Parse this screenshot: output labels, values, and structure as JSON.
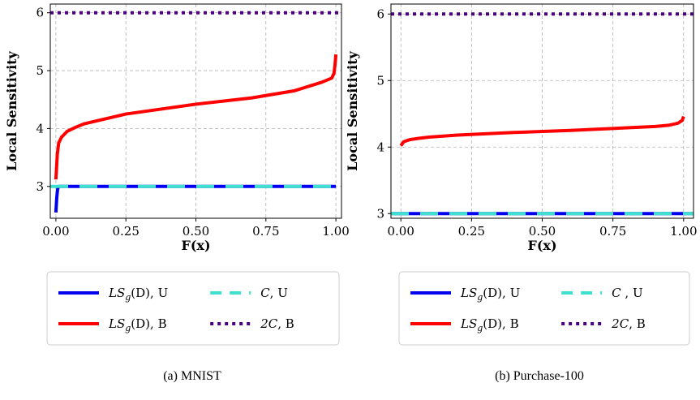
{
  "chart_data": [
    {
      "type": "line",
      "caption": "(a) MNIST",
      "xlabel": "F(x)",
      "ylabel": "Local Sensitivity",
      "xlim": [
        -0.02,
        1.02
      ],
      "ylim": [
        2.45,
        6.15
      ],
      "xticks": [
        0.0,
        0.25,
        0.5,
        0.75,
        1.0
      ],
      "xtick_labels": [
        "0.00",
        "0.25",
        "0.50",
        "0.75",
        "1.00"
      ],
      "yticks": [
        3,
        4,
        5,
        6
      ],
      "ytick_labels": [
        "3",
        "4",
        "5",
        "6"
      ],
      "grid": true,
      "legend_position": "below",
      "series": [
        {
          "name": "LS_g(D), U",
          "legend_main": "LS",
          "legend_sub": "g",
          "legend_rest": "(D), U",
          "color": "#0000ee",
          "style": "solid",
          "x": [
            0.0,
            0.003,
            0.006,
            0.01,
            1.0
          ],
          "y": [
            2.55,
            2.8,
            2.95,
            3.0,
            3.0
          ]
        },
        {
          "name": "LS_g(D), B",
          "legend_main": "LS",
          "legend_sub": "g",
          "legend_rest": "(D), B",
          "color": "#ff0000",
          "style": "solid",
          "x": [
            0.0,
            0.005,
            0.01,
            0.02,
            0.04,
            0.07,
            0.1,
            0.25,
            0.5,
            0.7,
            0.85,
            0.95,
            0.985,
            0.993,
            0.997,
            1.0
          ],
          "y": [
            3.12,
            3.55,
            3.75,
            3.85,
            3.95,
            4.02,
            4.08,
            4.25,
            4.42,
            4.53,
            4.65,
            4.8,
            4.87,
            4.95,
            5.1,
            5.28
          ]
        },
        {
          "name": "C, U",
          "legend_main": "C",
          "legend_sub": "",
          "legend_rest": ", U",
          "color": "#40e0d0",
          "style": "dashed",
          "x": [
            -0.02,
            1.02
          ],
          "y": [
            3.0,
            3.0
          ]
        },
        {
          "name": "2C, B",
          "legend_main": "2C",
          "legend_sub": "",
          "legend_rest": ", B",
          "color": "#4b0082",
          "style": "dotted",
          "x": [
            -0.02,
            1.02
          ],
          "y": [
            6.0,
            6.0
          ]
        }
      ]
    },
    {
      "type": "line",
      "caption": "(b) Purchase-100",
      "xlabel": "F(x)",
      "ylabel": "Local Sensitivity",
      "xlim": [
        -0.035,
        1.035
      ],
      "ylim": [
        2.93,
        6.15
      ],
      "xticks": [
        0.0,
        0.25,
        0.5,
        0.75,
        1.0
      ],
      "xtick_labels": [
        "0.00",
        "0.25",
        "0.50",
        "0.75",
        "1.00"
      ],
      "yticks": [
        3,
        4,
        5,
        6
      ],
      "ytick_labels": [
        "3",
        "4",
        "5",
        "6"
      ],
      "grid": true,
      "legend_position": "below",
      "series": [
        {
          "name": "LS_g(D), U",
          "legend_main": "LS",
          "legend_sub": "g",
          "legend_rest": "(D), U",
          "color": "#0000ee",
          "style": "solid",
          "x": [
            -0.035,
            1.035
          ],
          "y": [
            3.0,
            3.0
          ]
        },
        {
          "name": "LS_g(D), B",
          "legend_main": "LS",
          "legend_sub": "g",
          "legend_rest": "(D), B",
          "color": "#ff0000",
          "style": "solid",
          "x": [
            0.0,
            0.01,
            0.03,
            0.06,
            0.1,
            0.2,
            0.4,
            0.6,
            0.8,
            0.9,
            0.95,
            0.98,
            0.995,
            1.0
          ],
          "y": [
            4.02,
            4.08,
            4.11,
            4.13,
            4.15,
            4.18,
            4.22,
            4.25,
            4.29,
            4.31,
            4.33,
            4.36,
            4.4,
            4.46
          ]
        },
        {
          "name": "C , U",
          "legend_main": "C",
          "legend_sub": "",
          "legend_rest": " , U",
          "color": "#40e0d0",
          "style": "dashed",
          "x": [
            -0.035,
            1.035
          ],
          "y": [
            3.0,
            3.0
          ]
        },
        {
          "name": "2C, B",
          "legend_main": "2C",
          "legend_sub": "",
          "legend_rest": ", B",
          "color": "#4b0082",
          "style": "dotted",
          "x": [
            -0.035,
            1.035
          ],
          "y": [
            6.0,
            6.0
          ]
        }
      ]
    }
  ]
}
